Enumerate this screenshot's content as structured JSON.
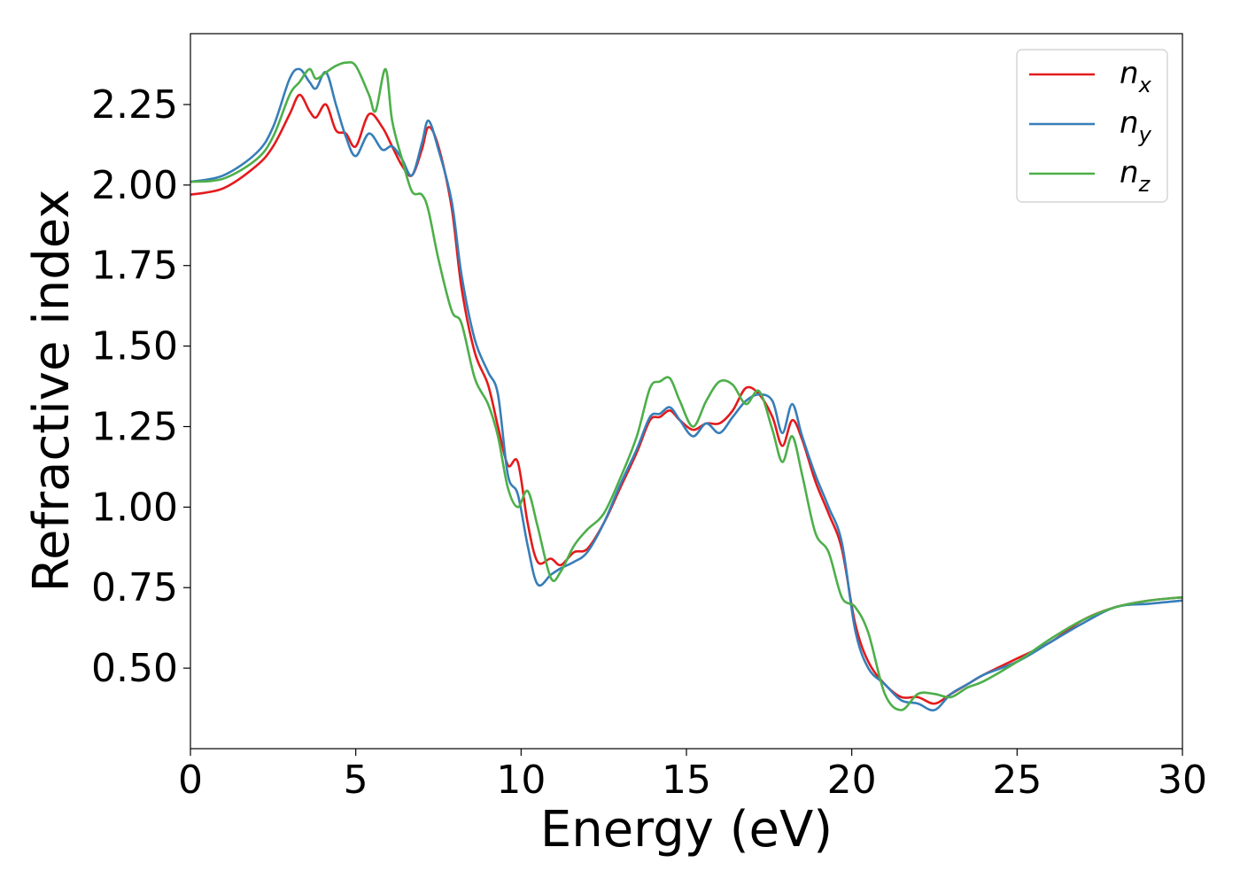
{
  "chart_data": {
    "type": "line",
    "xlabel": "Energy (eV)",
    "ylabel": "Refractive index",
    "xlim": [
      0,
      30
    ],
    "ylim": [
      0.25,
      2.47
    ],
    "xticks": [
      0,
      5,
      10,
      15,
      20,
      25,
      30
    ],
    "xtick_labels": [
      "0",
      "5",
      "10",
      "15",
      "20",
      "25",
      "30"
    ],
    "yticks": [
      0.5,
      0.75,
      1.0,
      1.25,
      1.5,
      1.75,
      2.0,
      2.25
    ],
    "ytick_labels": [
      "0.50",
      "0.75",
      "1.00",
      "1.25",
      "1.50",
      "1.75",
      "2.00",
      "2.25"
    ],
    "grid": false,
    "legend_position": "top-right",
    "series": [
      {
        "name": "n_x",
        "label_main": "n",
        "label_sub": "x",
        "color": "#e41a1c",
        "x": [
          0,
          1,
          2,
          2.5,
          3,
          3.3,
          3.6,
          3.8,
          4.1,
          4.4,
          4.7,
          5.0,
          5.4,
          5.8,
          6.1,
          6.4,
          6.7,
          7.0,
          7.2,
          7.5,
          7.9,
          8.2,
          8.6,
          9.0,
          9.3,
          9.6,
          9.9,
          10.2,
          10.5,
          10.9,
          11.2,
          11.6,
          12.0,
          12.5,
          13.0,
          13.5,
          13.9,
          14.2,
          14.5,
          14.8,
          15.2,
          15.6,
          16.0,
          16.4,
          16.8,
          17.2,
          17.6,
          17.9,
          18.2,
          18.5,
          18.9,
          19.3,
          19.7,
          20.1,
          20.5,
          21.0,
          21.5,
          22.0,
          22.5,
          23.0,
          23.5,
          24.0,
          25.0,
          26.0,
          27.0,
          28.0,
          29.0,
          30.0
        ],
        "y": [
          1.97,
          1.99,
          2.06,
          2.12,
          2.22,
          2.28,
          2.23,
          2.21,
          2.25,
          2.17,
          2.16,
          2.12,
          2.22,
          2.18,
          2.12,
          2.06,
          2.03,
          2.11,
          2.18,
          2.12,
          1.93,
          1.68,
          1.48,
          1.38,
          1.25,
          1.13,
          1.14,
          0.95,
          0.83,
          0.84,
          0.82,
          0.86,
          0.87,
          0.95,
          1.06,
          1.17,
          1.27,
          1.28,
          1.3,
          1.27,
          1.24,
          1.26,
          1.26,
          1.3,
          1.37,
          1.35,
          1.28,
          1.19,
          1.27,
          1.21,
          1.08,
          0.98,
          0.87,
          0.64,
          0.52,
          0.45,
          0.41,
          0.41,
          0.39,
          0.42,
          0.45,
          0.48,
          0.53,
          0.58,
          0.65,
          0.69,
          0.71,
          0.72
        ]
      },
      {
        "name": "n_y",
        "label_main": "n",
        "label_sub": "y",
        "color": "#377eb8",
        "x": [
          0,
          1,
          2,
          2.5,
          3,
          3.3,
          3.6,
          3.8,
          4.1,
          4.4,
          4.7,
          5.0,
          5.4,
          5.8,
          6.1,
          6.4,
          6.7,
          7.0,
          7.2,
          7.5,
          7.9,
          8.2,
          8.6,
          9.0,
          9.3,
          9.6,
          9.9,
          10.2,
          10.5,
          10.9,
          11.2,
          11.6,
          12.0,
          12.5,
          13.0,
          13.5,
          13.9,
          14.2,
          14.5,
          14.8,
          15.2,
          15.6,
          16.0,
          16.4,
          16.8,
          17.2,
          17.6,
          17.9,
          18.2,
          18.5,
          18.9,
          19.3,
          19.7,
          20.1,
          20.5,
          21.0,
          21.5,
          22.0,
          22.5,
          23.0,
          23.5,
          24.0,
          25.0,
          26.0,
          27.0,
          28.0,
          29.0,
          30.0
        ],
        "y": [
          2.01,
          2.03,
          2.1,
          2.18,
          2.33,
          2.36,
          2.32,
          2.3,
          2.35,
          2.25,
          2.15,
          2.09,
          2.16,
          2.11,
          2.12,
          2.08,
          2.03,
          2.13,
          2.2,
          2.11,
          1.95,
          1.72,
          1.52,
          1.42,
          1.35,
          1.1,
          1.04,
          0.88,
          0.76,
          0.79,
          0.81,
          0.83,
          0.86,
          0.95,
          1.07,
          1.18,
          1.28,
          1.29,
          1.31,
          1.27,
          1.22,
          1.26,
          1.23,
          1.28,
          1.33,
          1.35,
          1.33,
          1.23,
          1.32,
          1.22,
          1.1,
          1.0,
          0.89,
          0.62,
          0.5,
          0.45,
          0.4,
          0.39,
          0.37,
          0.42,
          0.45,
          0.48,
          0.52,
          0.58,
          0.64,
          0.69,
          0.7,
          0.71
        ]
      },
      {
        "name": "n_z",
        "label_main": "n",
        "label_sub": "z",
        "color": "#4daf4a",
        "x": [
          0,
          1,
          2,
          2.5,
          3,
          3.3,
          3.6,
          3.8,
          4.1,
          4.4,
          4.7,
          5.0,
          5.4,
          5.6,
          5.9,
          6.1,
          6.4,
          6.7,
          7.0,
          7.2,
          7.5,
          7.9,
          8.2,
          8.6,
          9.0,
          9.3,
          9.6,
          9.9,
          10.2,
          10.5,
          10.9,
          11.2,
          11.6,
          12.0,
          12.5,
          13.0,
          13.5,
          13.9,
          14.2,
          14.5,
          14.8,
          15.2,
          15.6,
          16.0,
          16.4,
          16.8,
          17.2,
          17.6,
          17.9,
          18.2,
          18.5,
          18.9,
          19.3,
          19.7,
          20.1,
          20.5,
          21.0,
          21.5,
          22.0,
          22.5,
          23.0,
          23.5,
          24.0,
          25.0,
          26.0,
          27.0,
          28.0,
          29.0,
          30.0
        ],
        "y": [
          2.01,
          2.02,
          2.08,
          2.15,
          2.28,
          2.32,
          2.36,
          2.33,
          2.35,
          2.37,
          2.38,
          2.37,
          2.28,
          2.23,
          2.36,
          2.2,
          2.08,
          1.98,
          1.97,
          1.92,
          1.77,
          1.61,
          1.57,
          1.4,
          1.32,
          1.22,
          1.06,
          1.0,
          1.05,
          0.94,
          0.78,
          0.8,
          0.88,
          0.93,
          0.98,
          1.09,
          1.22,
          1.37,
          1.39,
          1.4,
          1.33,
          1.25,
          1.33,
          1.39,
          1.38,
          1.32,
          1.36,
          1.24,
          1.14,
          1.22,
          1.1,
          0.92,
          0.86,
          0.72,
          0.69,
          0.61,
          0.42,
          0.37,
          0.42,
          0.42,
          0.41,
          0.44,
          0.46,
          0.52,
          0.59,
          0.65,
          0.69,
          0.71,
          0.72
        ]
      }
    ]
  }
}
